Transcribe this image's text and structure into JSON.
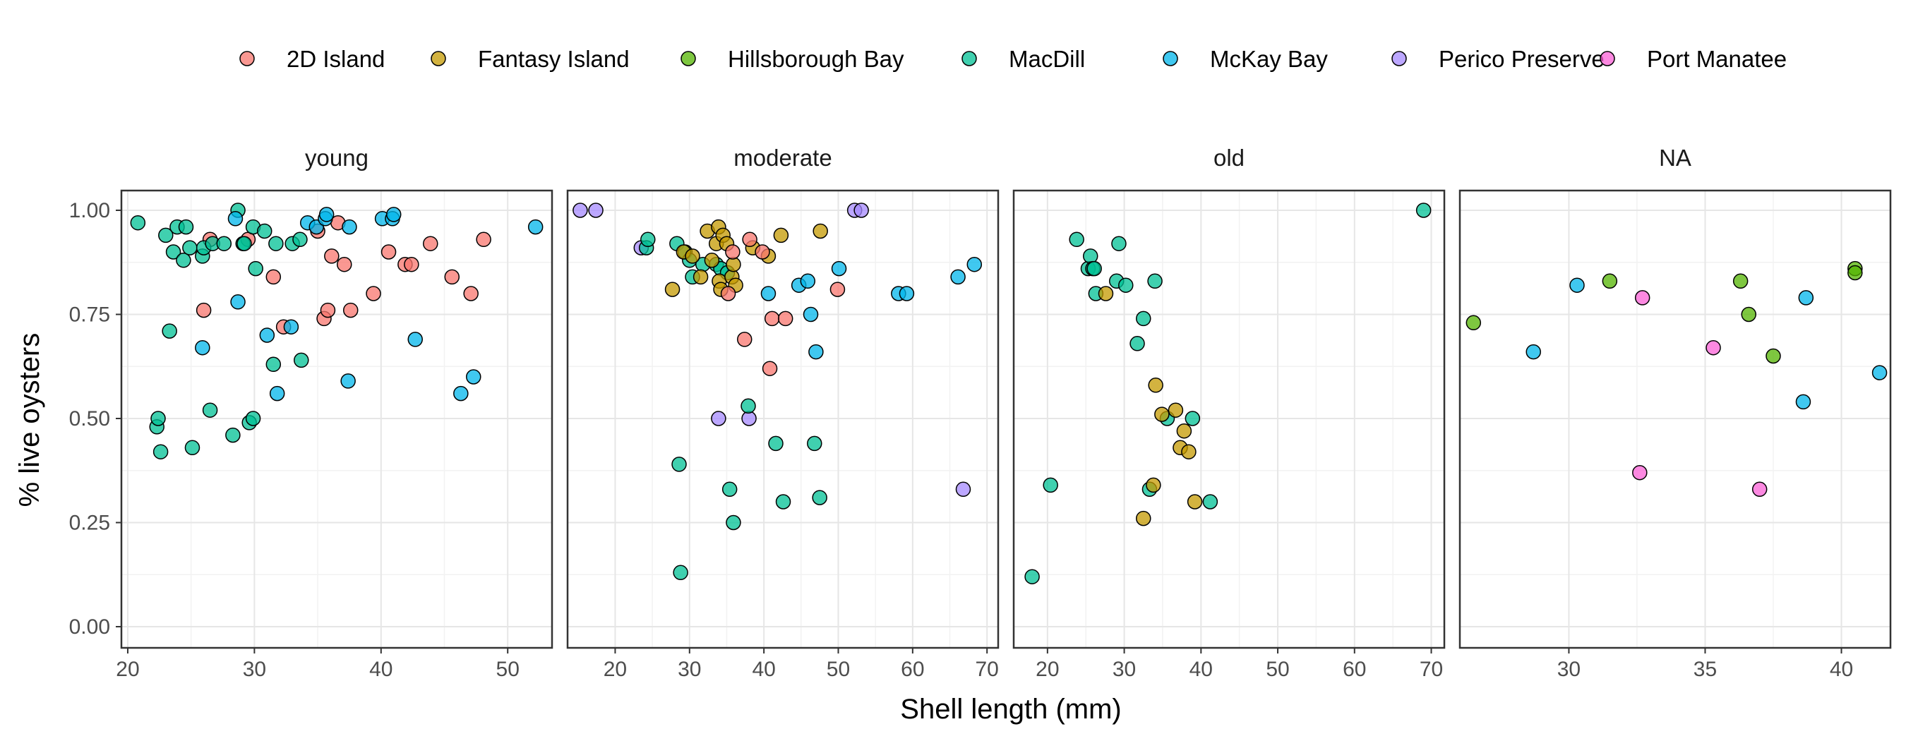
{
  "chart_data": {
    "type": "scatter",
    "xlabel": "Shell length (mm)",
    "ylabel": "% live oysters",
    "ylim": [
      0,
      1
    ],
    "yticks": [
      0.0,
      0.25,
      0.5,
      0.75,
      1.0
    ],
    "ytick_labels": [
      "0.00",
      "0.25",
      "0.50",
      "0.75",
      "1.00"
    ],
    "legend_position": "top",
    "grid": true,
    "groups": [
      {
        "name": "2D Island",
        "color": "#F8766D"
      },
      {
        "name": "Fantasy Island",
        "color": "#C49A00"
      },
      {
        "name": "Hillsborough Bay",
        "color": "#53B400"
      },
      {
        "name": "MacDill",
        "color": "#00C094"
      },
      {
        "name": "McKay Bay",
        "color": "#00B6EB"
      },
      {
        "name": "Perico Preserve",
        "color": "#A58AFF"
      },
      {
        "name": "Port Manatee",
        "color": "#FB61D7"
      }
    ],
    "panels": [
      {
        "title": "young",
        "xlim": [
          19.5,
          53.5
        ],
        "xticks": [
          20,
          30,
          40,
          50
        ],
        "points": [
          {
            "g": 0,
            "x": 26.0,
            "y": 0.76
          },
          {
            "g": 0,
            "x": 26.5,
            "y": 0.93
          },
          {
            "g": 0,
            "x": 29.5,
            "y": 0.93
          },
          {
            "g": 0,
            "x": 31.5,
            "y": 0.84
          },
          {
            "g": 0,
            "x": 32.3,
            "y": 0.72
          },
          {
            "g": 0,
            "x": 35.0,
            "y": 0.95
          },
          {
            "g": 0,
            "x": 35.5,
            "y": 0.74
          },
          {
            "g": 0,
            "x": 35.8,
            "y": 0.76
          },
          {
            "g": 0,
            "x": 36.1,
            "y": 0.89
          },
          {
            "g": 0,
            "x": 36.6,
            "y": 0.97
          },
          {
            "g": 0,
            "x": 37.1,
            "y": 0.87
          },
          {
            "g": 0,
            "x": 37.6,
            "y": 0.76
          },
          {
            "g": 0,
            "x": 39.4,
            "y": 0.8
          },
          {
            "g": 0,
            "x": 40.6,
            "y": 0.9
          },
          {
            "g": 0,
            "x": 41.9,
            "y": 0.87
          },
          {
            "g": 0,
            "x": 42.4,
            "y": 0.87
          },
          {
            "g": 0,
            "x": 43.9,
            "y": 0.92
          },
          {
            "g": 0,
            "x": 45.6,
            "y": 0.84
          },
          {
            "g": 0,
            "x": 47.1,
            "y": 0.8
          },
          {
            "g": 0,
            "x": 48.1,
            "y": 0.93
          },
          {
            "g": 3,
            "x": 20.8,
            "y": 0.97
          },
          {
            "g": 3,
            "x": 22.3,
            "y": 0.48
          },
          {
            "g": 3,
            "x": 22.4,
            "y": 0.5
          },
          {
            "g": 3,
            "x": 22.6,
            "y": 0.42
          },
          {
            "g": 3,
            "x": 23.0,
            "y": 0.94
          },
          {
            "g": 3,
            "x": 23.3,
            "y": 0.71
          },
          {
            "g": 3,
            "x": 23.6,
            "y": 0.9
          },
          {
            "g": 3,
            "x": 23.9,
            "y": 0.96
          },
          {
            "g": 3,
            "x": 24.4,
            "y": 0.88
          },
          {
            "g": 3,
            "x": 24.6,
            "y": 0.96
          },
          {
            "g": 3,
            "x": 24.9,
            "y": 0.91
          },
          {
            "g": 3,
            "x": 25.1,
            "y": 0.43
          },
          {
            "g": 3,
            "x": 25.9,
            "y": 0.89
          },
          {
            "g": 3,
            "x": 26.0,
            "y": 0.91
          },
          {
            "g": 3,
            "x": 26.5,
            "y": 0.52
          },
          {
            "g": 3,
            "x": 26.7,
            "y": 0.92
          },
          {
            "g": 3,
            "x": 27.6,
            "y": 0.92
          },
          {
            "g": 3,
            "x": 28.3,
            "y": 0.46
          },
          {
            "g": 3,
            "x": 28.7,
            "y": 1.0
          },
          {
            "g": 3,
            "x": 29.1,
            "y": 0.92
          },
          {
            "g": 3,
            "x": 29.6,
            "y": 0.49
          },
          {
            "g": 3,
            "x": 29.9,
            "y": 0.5
          },
          {
            "g": 3,
            "x": 29.9,
            "y": 0.96
          },
          {
            "g": 3,
            "x": 30.1,
            "y": 0.86
          },
          {
            "g": 3,
            "x": 30.8,
            "y": 0.95
          },
          {
            "g": 3,
            "x": 31.5,
            "y": 0.63
          },
          {
            "g": 3,
            "x": 31.7,
            "y": 0.92
          },
          {
            "g": 3,
            "x": 33.0,
            "y": 0.92
          },
          {
            "g": 3,
            "x": 33.6,
            "y": 0.93
          },
          {
            "g": 3,
            "x": 33.7,
            "y": 0.64
          },
          {
            "g": 3,
            "x": 29.2,
            "y": 0.92
          },
          {
            "g": 4,
            "x": 28.5,
            "y": 0.98
          },
          {
            "g": 4,
            "x": 28.7,
            "y": 0.78
          },
          {
            "g": 4,
            "x": 25.9,
            "y": 0.67
          },
          {
            "g": 4,
            "x": 31.0,
            "y": 0.7
          },
          {
            "g": 4,
            "x": 31.8,
            "y": 0.56
          },
          {
            "g": 4,
            "x": 32.9,
            "y": 0.72
          },
          {
            "g": 4,
            "x": 34.2,
            "y": 0.97
          },
          {
            "g": 4,
            "x": 34.9,
            "y": 0.96
          },
          {
            "g": 4,
            "x": 35.6,
            "y": 0.98
          },
          {
            "g": 4,
            "x": 35.7,
            "y": 0.99
          },
          {
            "g": 4,
            "x": 37.5,
            "y": 0.96
          },
          {
            "g": 4,
            "x": 37.4,
            "y": 0.59
          },
          {
            "g": 4,
            "x": 40.1,
            "y": 0.98
          },
          {
            "g": 4,
            "x": 40.9,
            "y": 0.98
          },
          {
            "g": 4,
            "x": 41.0,
            "y": 0.99
          },
          {
            "g": 4,
            "x": 42.7,
            "y": 0.69
          },
          {
            "g": 4,
            "x": 46.3,
            "y": 0.56
          },
          {
            "g": 4,
            "x": 47.3,
            "y": 0.6
          },
          {
            "g": 4,
            "x": 52.2,
            "y": 0.96
          }
        ]
      },
      {
        "title": "moderate",
        "xlim": [
          13.6,
          71.5
        ],
        "xticks": [
          20,
          30,
          40,
          50,
          60,
          70
        ],
        "points": [
          {
            "g": 5,
            "x": 15.3,
            "y": 1.0
          },
          {
            "g": 5,
            "x": 17.4,
            "y": 1.0
          },
          {
            "g": 5,
            "x": 23.5,
            "y": 0.91
          },
          {
            "g": 5,
            "x": 33.9,
            "y": 0.5
          },
          {
            "g": 5,
            "x": 38.0,
            "y": 0.5
          },
          {
            "g": 5,
            "x": 52.2,
            "y": 1.0
          },
          {
            "g": 5,
            "x": 53.1,
            "y": 1.0
          },
          {
            "g": 5,
            "x": 66.8,
            "y": 0.33
          },
          {
            "g": 3,
            "x": 24.2,
            "y": 0.91
          },
          {
            "g": 3,
            "x": 24.4,
            "y": 0.93
          },
          {
            "g": 3,
            "x": 28.3,
            "y": 0.92
          },
          {
            "g": 3,
            "x": 29.4,
            "y": 0.9
          },
          {
            "g": 3,
            "x": 30.0,
            "y": 0.88
          },
          {
            "g": 3,
            "x": 30.4,
            "y": 0.84
          },
          {
            "g": 3,
            "x": 31.8,
            "y": 0.87
          },
          {
            "g": 3,
            "x": 33.6,
            "y": 0.87
          },
          {
            "g": 3,
            "x": 34.2,
            "y": 0.86
          },
          {
            "g": 3,
            "x": 35.1,
            "y": 0.85
          },
          {
            "g": 3,
            "x": 28.6,
            "y": 0.39
          },
          {
            "g": 3,
            "x": 28.8,
            "y": 0.13
          },
          {
            "g": 3,
            "x": 35.4,
            "y": 0.33
          },
          {
            "g": 3,
            "x": 35.9,
            "y": 0.25
          },
          {
            "g": 3,
            "x": 37.9,
            "y": 0.53
          },
          {
            "g": 3,
            "x": 41.6,
            "y": 0.44
          },
          {
            "g": 3,
            "x": 42.6,
            "y": 0.3
          },
          {
            "g": 3,
            "x": 46.8,
            "y": 0.44
          },
          {
            "g": 3,
            "x": 47.5,
            "y": 0.31
          },
          {
            "g": 1,
            "x": 27.7,
            "y": 0.81
          },
          {
            "g": 1,
            "x": 29.2,
            "y": 0.9
          },
          {
            "g": 1,
            "x": 30.4,
            "y": 0.89
          },
          {
            "g": 1,
            "x": 31.5,
            "y": 0.84
          },
          {
            "g": 1,
            "x": 32.4,
            "y": 0.95
          },
          {
            "g": 1,
            "x": 33.0,
            "y": 0.88
          },
          {
            "g": 1,
            "x": 33.6,
            "y": 0.92
          },
          {
            "g": 1,
            "x": 33.9,
            "y": 0.96
          },
          {
            "g": 1,
            "x": 34.0,
            "y": 0.83
          },
          {
            "g": 1,
            "x": 34.2,
            "y": 0.81
          },
          {
            "g": 1,
            "x": 34.5,
            "y": 0.94
          },
          {
            "g": 1,
            "x": 35.0,
            "y": 0.92
          },
          {
            "g": 1,
            "x": 35.7,
            "y": 0.84
          },
          {
            "g": 1,
            "x": 35.9,
            "y": 0.87
          },
          {
            "g": 1,
            "x": 36.2,
            "y": 0.82
          },
          {
            "g": 1,
            "x": 38.5,
            "y": 0.91
          },
          {
            "g": 1,
            "x": 40.6,
            "y": 0.89
          },
          {
            "g": 1,
            "x": 42.3,
            "y": 0.94
          },
          {
            "g": 1,
            "x": 47.6,
            "y": 0.95
          },
          {
            "g": 0,
            "x": 35.2,
            "y": 0.8
          },
          {
            "g": 0,
            "x": 35.8,
            "y": 0.9
          },
          {
            "g": 0,
            "x": 37.4,
            "y": 0.69
          },
          {
            "g": 0,
            "x": 38.1,
            "y": 0.93
          },
          {
            "g": 0,
            "x": 39.8,
            "y": 0.9
          },
          {
            "g": 0,
            "x": 40.8,
            "y": 0.62
          },
          {
            "g": 0,
            "x": 41.1,
            "y": 0.74
          },
          {
            "g": 0,
            "x": 42.9,
            "y": 0.74
          },
          {
            "g": 0,
            "x": 49.9,
            "y": 0.81
          },
          {
            "g": 4,
            "x": 40.6,
            "y": 0.8
          },
          {
            "g": 4,
            "x": 44.7,
            "y": 0.82
          },
          {
            "g": 4,
            "x": 45.9,
            "y": 0.83
          },
          {
            "g": 4,
            "x": 46.3,
            "y": 0.75
          },
          {
            "g": 4,
            "x": 47.0,
            "y": 0.66
          },
          {
            "g": 4,
            "x": 50.1,
            "y": 0.86
          },
          {
            "g": 4,
            "x": 58.1,
            "y": 0.8
          },
          {
            "g": 4,
            "x": 59.2,
            "y": 0.8
          },
          {
            "g": 4,
            "x": 66.1,
            "y": 0.84
          },
          {
            "g": 4,
            "x": 68.3,
            "y": 0.87
          }
        ]
      },
      {
        "title": "old",
        "xlim": [
          15.6,
          71.7
        ],
        "xticks": [
          20,
          30,
          40,
          50,
          60,
          70
        ],
        "points": [
          {
            "g": 3,
            "x": 18.0,
            "y": 0.12
          },
          {
            "g": 3,
            "x": 20.4,
            "y": 0.34
          },
          {
            "g": 3,
            "x": 23.8,
            "y": 0.93
          },
          {
            "g": 3,
            "x": 25.3,
            "y": 0.86
          },
          {
            "g": 3,
            "x": 25.6,
            "y": 0.89
          },
          {
            "g": 3,
            "x": 25.9,
            "y": 0.86
          },
          {
            "g": 3,
            "x": 26.3,
            "y": 0.8
          },
          {
            "g": 3,
            "x": 26.1,
            "y": 0.86
          },
          {
            "g": 3,
            "x": 29.0,
            "y": 0.83
          },
          {
            "g": 3,
            "x": 29.3,
            "y": 0.92
          },
          {
            "g": 3,
            "x": 30.2,
            "y": 0.82
          },
          {
            "g": 3,
            "x": 31.7,
            "y": 0.68
          },
          {
            "g": 3,
            "x": 32.5,
            "y": 0.74
          },
          {
            "g": 3,
            "x": 33.3,
            "y": 0.33
          },
          {
            "g": 3,
            "x": 34.0,
            "y": 0.83
          },
          {
            "g": 3,
            "x": 35.6,
            "y": 0.5
          },
          {
            "g": 3,
            "x": 38.9,
            "y": 0.5
          },
          {
            "g": 3,
            "x": 41.2,
            "y": 0.3
          },
          {
            "g": 3,
            "x": 69.0,
            "y": 1.0
          },
          {
            "g": 1,
            "x": 27.6,
            "y": 0.8
          },
          {
            "g": 1,
            "x": 32.5,
            "y": 0.26
          },
          {
            "g": 1,
            "x": 33.8,
            "y": 0.34
          },
          {
            "g": 1,
            "x": 34.1,
            "y": 0.58
          },
          {
            "g": 1,
            "x": 34.9,
            "y": 0.51
          },
          {
            "g": 1,
            "x": 36.7,
            "y": 0.52
          },
          {
            "g": 1,
            "x": 37.3,
            "y": 0.43
          },
          {
            "g": 1,
            "x": 37.8,
            "y": 0.47
          },
          {
            "g": 1,
            "x": 38.4,
            "y": 0.42
          },
          {
            "g": 1,
            "x": 39.2,
            "y": 0.3
          }
        ]
      },
      {
        "title": "NA",
        "xlim": [
          26.0,
          41.8
        ],
        "xticks": [
          30,
          35,
          40
        ],
        "points": [
          {
            "g": 2,
            "x": 26.5,
            "y": 0.73
          },
          {
            "g": 2,
            "x": 31.5,
            "y": 0.83
          },
          {
            "g": 2,
            "x": 36.3,
            "y": 0.83
          },
          {
            "g": 2,
            "x": 36.6,
            "y": 0.75
          },
          {
            "g": 2,
            "x": 37.5,
            "y": 0.65
          },
          {
            "g": 2,
            "x": 40.5,
            "y": 0.86
          },
          {
            "g": 2,
            "x": 40.5,
            "y": 0.85
          },
          {
            "g": 4,
            "x": 28.7,
            "y": 0.66
          },
          {
            "g": 4,
            "x": 30.3,
            "y": 0.82
          },
          {
            "g": 4,
            "x": 38.6,
            "y": 0.54
          },
          {
            "g": 4,
            "x": 38.7,
            "y": 0.79
          },
          {
            "g": 4,
            "x": 41.4,
            "y": 0.61
          },
          {
            "g": 6,
            "x": 32.6,
            "y": 0.37
          },
          {
            "g": 6,
            "x": 32.7,
            "y": 0.79
          },
          {
            "g": 6,
            "x": 35.3,
            "y": 0.67
          },
          {
            "g": 6,
            "x": 37.0,
            "y": 0.33
          }
        ]
      }
    ]
  }
}
